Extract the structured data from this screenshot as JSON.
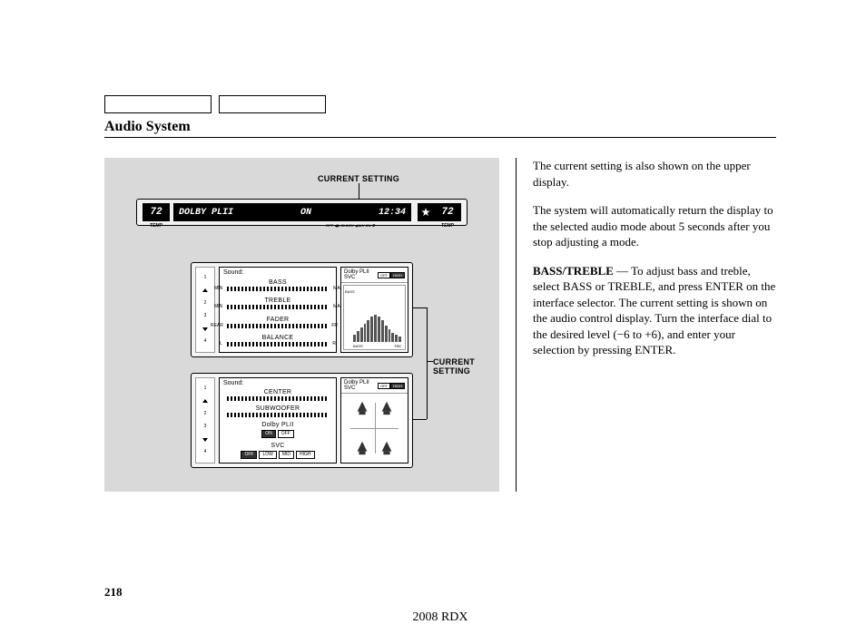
{
  "header": {
    "section_title": "Audio System"
  },
  "figure": {
    "label_current_setting": "CURRENT SETTING",
    "upper_display": {
      "temp_left": "72",
      "temp_right": "72",
      "temp_label": "TEMP",
      "main_text_left": "DOLBY PLII",
      "main_text_mid": "ON",
      "main_text_right": "12:34",
      "sub_text": "RPT ◀▶ CLOCK ◀ A/V ON ✱"
    },
    "panel1": {
      "title": "Sound:",
      "rows": [
        {
          "label": "BASS",
          "type": "minmax"
        },
        {
          "label": "TREBLE",
          "type": "minmax"
        },
        {
          "label": "FADER",
          "type": "rearfr"
        },
        {
          "label": "BALANCE",
          "type": "lr"
        }
      ],
      "right_head_line1": "Dolby PLII",
      "right_head_line2": "SVC",
      "right_toggle": [
        "OFF",
        "HIGH"
      ],
      "eq_axis_left": "BASS",
      "eq_axis_right": "TRE",
      "eq_heights": [
        8,
        12,
        16,
        20,
        24,
        28,
        30,
        28,
        24,
        18,
        14,
        10,
        8,
        6
      ]
    },
    "panel2": {
      "title": "Sound:",
      "rows": [
        {
          "label": "CENTER",
          "type": "bar"
        },
        {
          "label": "SUBWOOFER",
          "type": "bar"
        },
        {
          "label": "Dolby PLII",
          "type": "toggle",
          "opts": [
            "ON",
            "OFF"
          ]
        },
        {
          "label": "SVC",
          "type": "toggle4",
          "opts": [
            "OFF",
            "LOW",
            "MID",
            "HIGH"
          ]
        }
      ],
      "right_head_line1": "Dolby PLII",
      "right_head_line2": "SVC",
      "right_toggle": [
        "OFF",
        "HIGH"
      ]
    },
    "left_wheel": {
      "items": [
        "1",
        "▲",
        "2",
        "▼",
        "3",
        "4"
      ],
      "up_label": "UP",
      "down_label": "DOWN"
    }
  },
  "text": {
    "p1": "The current setting is also shown on the upper display.",
    "p2": "The system will automatically return the display to the selected audio mode about 5 seconds after you stop adjusting a mode.",
    "p3_lead": "BASS/TREBLE",
    "p3_body": " — To adjust bass and treble, select BASS or TREBLE, and press ENTER on the interface selector. The current setting is shown on the audio control display. Turn the interface dial to the desired level (−6 to +6), and enter your selection by pressing ENTER."
  },
  "footer": {
    "page_number": "218",
    "vehicle": "2008  RDX"
  },
  "colors": {
    "panel_bg": "#d9d9d9",
    "display_bg": "#000000",
    "display_fg": "#ffffff"
  }
}
